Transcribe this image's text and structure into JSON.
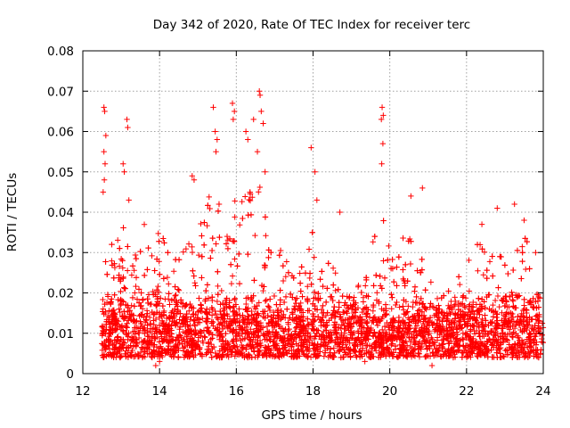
{
  "chart_data": {
    "type": "scatter",
    "title": "Day 342 of 2020, Rate Of TEC Index for receiver terc",
    "xlabel": "GPS time / hours",
    "ylabel": "ROTI / TECUs",
    "xlim": [
      12,
      24
    ],
    "ylim": [
      0,
      0.08
    ],
    "x_ticks": [
      "12",
      "14",
      "16",
      "18",
      "20",
      "22",
      "24"
    ],
    "y_ticks": [
      "0",
      "0.01",
      "0.02",
      "0.03",
      "0.04",
      "0.05",
      "0.06",
      "0.07",
      "0.08"
    ],
    "grid": true,
    "marker": "plus",
    "series": [
      {
        "color": "#ff0000",
        "x_range": [
          12.5,
          24.0
        ],
        "baseline_range": [
          0.004,
          0.02
        ],
        "points": [
          {
            "x": 12.55,
            "y": 0.066
          },
          {
            "x": 12.57,
            "y": 0.065
          },
          {
            "x": 12.6,
            "y": 0.059
          },
          {
            "x": 12.55,
            "y": 0.055
          },
          {
            "x": 12.58,
            "y": 0.052
          },
          {
            "x": 12.56,
            "y": 0.048
          },
          {
            "x": 12.53,
            "y": 0.045
          },
          {
            "x": 13.05,
            "y": 0.052
          },
          {
            "x": 13.08,
            "y": 0.05
          },
          {
            "x": 13.15,
            "y": 0.063
          },
          {
            "x": 13.17,
            "y": 0.061
          },
          {
            "x": 13.2,
            "y": 0.043
          },
          {
            "x": 14.85,
            "y": 0.049
          },
          {
            "x": 14.9,
            "y": 0.048
          },
          {
            "x": 15.4,
            "y": 0.066
          },
          {
            "x": 15.45,
            "y": 0.06
          },
          {
            "x": 15.5,
            "y": 0.058
          },
          {
            "x": 15.47,
            "y": 0.055
          },
          {
            "x": 15.9,
            "y": 0.067
          },
          {
            "x": 15.95,
            "y": 0.065
          },
          {
            "x": 15.92,
            "y": 0.063
          },
          {
            "x": 16.25,
            "y": 0.06
          },
          {
            "x": 16.3,
            "y": 0.058
          },
          {
            "x": 16.45,
            "y": 0.063
          },
          {
            "x": 16.6,
            "y": 0.07
          },
          {
            "x": 16.62,
            "y": 0.069
          },
          {
            "x": 16.65,
            "y": 0.065
          },
          {
            "x": 16.7,
            "y": 0.062
          },
          {
            "x": 16.55,
            "y": 0.055
          },
          {
            "x": 16.75,
            "y": 0.05
          },
          {
            "x": 17.95,
            "y": 0.056
          },
          {
            "x": 18.05,
            "y": 0.05
          },
          {
            "x": 18.1,
            "y": 0.043
          },
          {
            "x": 19.8,
            "y": 0.066
          },
          {
            "x": 19.83,
            "y": 0.064
          },
          {
            "x": 19.78,
            "y": 0.063
          },
          {
            "x": 19.82,
            "y": 0.057
          },
          {
            "x": 19.79,
            "y": 0.052
          },
          {
            "x": 20.55,
            "y": 0.044
          },
          {
            "x": 20.85,
            "y": 0.046
          },
          {
            "x": 22.4,
            "y": 0.037
          },
          {
            "x": 22.8,
            "y": 0.041
          },
          {
            "x": 23.25,
            "y": 0.042
          },
          {
            "x": 23.5,
            "y": 0.038
          },
          {
            "x": 23.8,
            "y": 0.03
          },
          {
            "x": 18.7,
            "y": 0.04
          },
          {
            "x": 19.35,
            "y": 0.003
          },
          {
            "x": 13.9,
            "y": 0.002
          },
          {
            "x": 14.0,
            "y": 0.003
          },
          {
            "x": 21.1,
            "y": 0.002
          }
        ],
        "envelope": [
          {
            "x": 12.5,
            "y": 0.03
          },
          {
            "x": 12.8,
            "y": 0.034
          },
          {
            "x": 13.0,
            "y": 0.038
          },
          {
            "x": 13.3,
            "y": 0.03
          },
          {
            "x": 13.6,
            "y": 0.037
          },
          {
            "x": 14.0,
            "y": 0.036
          },
          {
            "x": 14.4,
            "y": 0.03
          },
          {
            "x": 14.8,
            "y": 0.043
          },
          {
            "x": 15.0,
            "y": 0.04
          },
          {
            "x": 15.4,
            "y": 0.048
          },
          {
            "x": 15.7,
            "y": 0.04
          },
          {
            "x": 16.0,
            "y": 0.046
          },
          {
            "x": 16.3,
            "y": 0.045
          },
          {
            "x": 16.6,
            "y": 0.048
          },
          {
            "x": 16.9,
            "y": 0.035
          },
          {
            "x": 17.3,
            "y": 0.028
          },
          {
            "x": 17.6,
            "y": 0.025
          },
          {
            "x": 18.0,
            "y": 0.04
          },
          {
            "x": 18.3,
            "y": 0.032
          },
          {
            "x": 18.6,
            "y": 0.028
          },
          {
            "x": 19.0,
            "y": 0.022
          },
          {
            "x": 19.4,
            "y": 0.03
          },
          {
            "x": 19.8,
            "y": 0.04
          },
          {
            "x": 20.2,
            "y": 0.035
          },
          {
            "x": 20.5,
            "y": 0.038
          },
          {
            "x": 20.8,
            "y": 0.03
          },
          {
            "x": 21.2,
            "y": 0.02
          },
          {
            "x": 21.6,
            "y": 0.022
          },
          {
            "x": 22.0,
            "y": 0.027
          },
          {
            "x": 22.3,
            "y": 0.033
          },
          {
            "x": 22.6,
            "y": 0.03
          },
          {
            "x": 23.0,
            "y": 0.03
          },
          {
            "x": 23.3,
            "y": 0.033
          },
          {
            "x": 23.6,
            "y": 0.034
          },
          {
            "x": 24.0,
            "y": 0.027
          }
        ]
      }
    ]
  }
}
